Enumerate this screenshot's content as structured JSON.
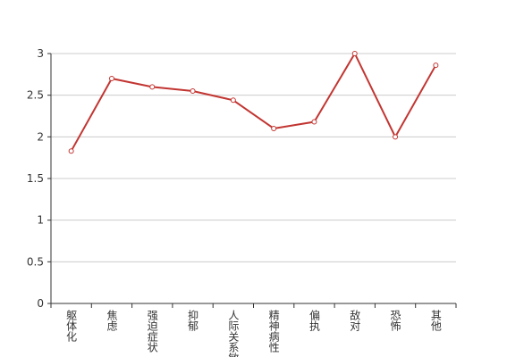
{
  "chart_data": {
    "type": "line",
    "categories": [
      "躯体化",
      "焦虑",
      "强迫症状",
      "抑郁",
      "人际关系敏感",
      "精神病性",
      "偏执",
      "敌对",
      "恐怖",
      "其他"
    ],
    "values": [
      1.83,
      2.7,
      2.6,
      2.55,
      2.44,
      2.1,
      2.18,
      3.0,
      2.0,
      2.86
    ],
    "color": "#c23531",
    "ylim": [
      0,
      3
    ],
    "yticks": [
      0,
      0.5,
      1,
      1.5,
      2,
      2.5,
      3
    ],
    "grid": true
  }
}
